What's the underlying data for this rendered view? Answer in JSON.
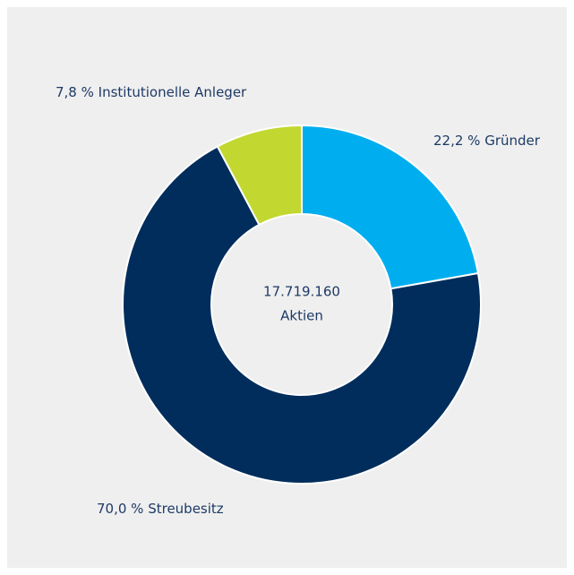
{
  "chart_data": {
    "type": "donut",
    "categories": [
      "Gründer",
      "Streubesitz",
      "Institutionelle Anleger"
    ],
    "values": [
      22.2,
      70.0,
      7.8
    ],
    "value_labels": [
      "22,2 %",
      "70,0 %",
      "7,8 %"
    ],
    "colors": [
      "#00aeef",
      "#002d5c",
      "#c2d730"
    ],
    "center_label": [
      "17.719.160",
      "Aktien"
    ]
  }
}
